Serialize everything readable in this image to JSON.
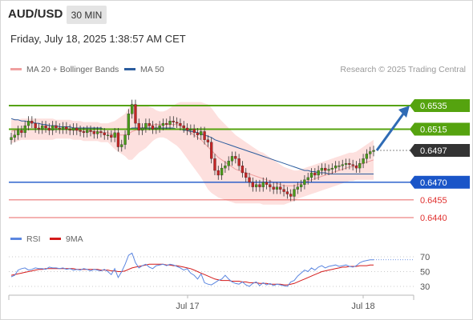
{
  "header": {
    "symbol": "AUD/USD",
    "timeframe": "30 MIN",
    "timestamp": "Friday, July 18, 2025 1:38:57 AM CET"
  },
  "legend": {
    "ma20_label": "MA 20 + Bollinger Bands",
    "ma50_label": "MA 50",
    "credit": "Research © 2025 Trading Central",
    "rsi_label": "RSI",
    "ma9_label": "9MA"
  },
  "colors": {
    "green_level": "#55a30f",
    "blue_level": "#1a55c8",
    "red_level": "#e0312f",
    "price_badge": "#333333",
    "arrow": "#2f6bb5",
    "candle_up": "#4a9a1a",
    "candle_down": "#c42525",
    "bollinger_fill": "#fde0de",
    "ma20": "#f0a0a0",
    "ma50": "#2b5c9e",
    "rsi": "#5b86e0",
    "rsi_ma": "#d41a1a"
  },
  "chart_data": [
    {
      "type": "candlestick",
      "title": "AUD/USD 30 MIN",
      "price_levels": [
        {
          "value": 0.6535,
          "label": "0.6535",
          "kind": "resistance"
        },
        {
          "value": 0.6515,
          "label": "0.6515",
          "kind": "resistance"
        },
        {
          "value": 0.6497,
          "label": "0.6497",
          "kind": "last_price"
        },
        {
          "value": 0.647,
          "label": "0.6470",
          "kind": "pivot"
        },
        {
          "value": 0.6455,
          "label": "0.6455",
          "kind": "support"
        },
        {
          "value": 0.644,
          "label": "0.6440",
          "kind": "support"
        }
      ],
      "x_ticks": [
        "Jul 17",
        "Jul 18"
      ],
      "ylim": [
        0.643,
        0.6545
      ],
      "closes": [
        0.6508,
        0.651,
        0.6514,
        0.6512,
        0.6518,
        0.6522,
        0.652,
        0.6516,
        0.6515,
        0.6518,
        0.6516,
        0.6514,
        0.6518,
        0.6516,
        0.6515,
        0.6517,
        0.6515,
        0.6514,
        0.6516,
        0.6514,
        0.6513,
        0.6512,
        0.6514,
        0.6513,
        0.6511,
        0.6513,
        0.6512,
        0.651,
        0.651,
        0.6508,
        0.6512,
        0.65,
        0.6502,
        0.651,
        0.6528,
        0.6536,
        0.652,
        0.6514,
        0.6516,
        0.652,
        0.6518,
        0.6515,
        0.6516,
        0.6518,
        0.652,
        0.6519,
        0.6522,
        0.6521,
        0.652,
        0.6518,
        0.6516,
        0.6514,
        0.6515,
        0.6512,
        0.651,
        0.6513,
        0.6506,
        0.6504,
        0.649,
        0.648,
        0.6476,
        0.6482,
        0.6484,
        0.6488,
        0.6492,
        0.649,
        0.6484,
        0.6478,
        0.6474,
        0.647,
        0.6466,
        0.6468,
        0.6466,
        0.647,
        0.6468,
        0.6466,
        0.6464,
        0.6466,
        0.6464,
        0.6462,
        0.646,
        0.6458,
        0.6464,
        0.6466,
        0.6468,
        0.6472,
        0.6474,
        0.6478,
        0.6476,
        0.648,
        0.6482,
        0.648,
        0.6481,
        0.6482,
        0.6484,
        0.6484,
        0.6485,
        0.6486,
        0.6485,
        0.6484,
        0.6482,
        0.6486,
        0.649,
        0.6494,
        0.6496,
        0.6497
      ],
      "ma20": [
        0.6513,
        0.6514,
        0.6514,
        0.6515,
        0.6515,
        0.6515,
        0.6515,
        0.6515,
        0.6515,
        0.6515,
        0.6515,
        0.6515,
        0.6515,
        0.6515,
        0.6515,
        0.6515,
        0.6515,
        0.6515,
        0.6514,
        0.6514,
        0.6514,
        0.6513,
        0.6513,
        0.6513,
        0.6513,
        0.6513,
        0.6512,
        0.6512,
        0.6512,
        0.6511,
        0.651,
        0.651,
        0.651,
        0.651,
        0.6511,
        0.6513,
        0.6514,
        0.6515,
        0.6516,
        0.6517,
        0.6518,
        0.6519,
        0.6519,
        0.6519,
        0.6519,
        0.6519,
        0.6519,
        0.6519,
        0.6519,
        0.6518,
        0.6516,
        0.6514,
        0.6512,
        0.651,
        0.6508,
        0.6506,
        0.6503,
        0.65,
        0.6497,
        0.6494,
        0.6491,
        0.6489,
        0.6487,
        0.6485,
        0.6483,
        0.6481,
        0.648,
        0.6479,
        0.6478,
        0.6477,
        0.6476,
        0.6475,
        0.6474,
        0.6473,
        0.6472,
        0.6471,
        0.647,
        0.6469,
        0.6468,
        0.6467,
        0.6467,
        0.6467,
        0.6467,
        0.6468,
        0.6469,
        0.647,
        0.6471,
        0.6472,
        0.6473,
        0.6474,
        0.6475,
        0.6476,
        0.6477,
        0.6478,
        0.6479,
        0.648,
        0.6481,
        0.6482,
        0.6483,
        0.6483,
        0.6484,
        0.6485,
        0.6486,
        0.6487,
        0.6488,
        0.6489
      ],
      "ma50": [
        0.6524,
        0.6523,
        0.6523,
        0.6522,
        0.6522,
        0.6521,
        0.6521,
        0.652,
        0.652,
        0.6519,
        0.6519,
        0.6518,
        0.6518,
        0.6518,
        0.6517,
        0.6517,
        0.6517,
        0.6517,
        0.6516,
        0.6516,
        0.6516,
        0.6516,
        0.6516,
        0.6516,
        0.6516,
        0.6516,
        0.6516,
        0.6515,
        0.6515,
        0.6515,
        0.6515,
        0.6515,
        0.6515,
        0.6515,
        0.6515,
        0.6516,
        0.6516,
        0.6516,
        0.6516,
        0.6516,
        0.6516,
        0.6516,
        0.6516,
        0.6516,
        0.6516,
        0.6516,
        0.6516,
        0.6516,
        0.6515,
        0.6515,
        0.6514,
        0.6514,
        0.6513,
        0.6513,
        0.6512,
        0.6511,
        0.651,
        0.6509,
        0.6508,
        0.6506,
        0.6505,
        0.6504,
        0.6503,
        0.6502,
        0.6501,
        0.65,
        0.6499,
        0.6498,
        0.6497,
        0.6496,
        0.6495,
        0.6494,
        0.6493,
        0.6492,
        0.6491,
        0.649,
        0.6489,
        0.6488,
        0.6487,
        0.6486,
        0.6485,
        0.6484,
        0.6483,
        0.6482,
        0.6481,
        0.648,
        0.648,
        0.6479,
        0.6479,
        0.6478,
        0.6478,
        0.6478,
        0.6477,
        0.6477,
        0.6477,
        0.6477,
        0.6477,
        0.6477,
        0.6477,
        0.6477,
        0.6477,
        0.6477,
        0.6477,
        0.6477,
        0.6477,
        0.6477
      ],
      "bb_width": [
        0.001,
        0.001,
        0.0009,
        0.0009,
        0.0009,
        0.0009,
        0.0009,
        0.0009,
        0.0009,
        0.0009,
        0.0009,
        0.0009,
        0.0009,
        0.0008,
        0.0008,
        0.0008,
        0.0008,
        0.0008,
        0.0008,
        0.0008,
        0.0008,
        0.0008,
        0.0008,
        0.0008,
        0.0008,
        0.0008,
        0.0008,
        0.0008,
        0.0008,
        0.001,
        0.0012,
        0.0014,
        0.0016,
        0.0018,
        0.0022,
        0.0024,
        0.0022,
        0.002,
        0.0019,
        0.0018,
        0.0016,
        0.0014,
        0.0012,
        0.0011,
        0.0011,
        0.0012,
        0.0014,
        0.0016,
        0.0018,
        0.002,
        0.0022,
        0.0024,
        0.0026,
        0.0028,
        0.003,
        0.0032,
        0.0034,
        0.0036,
        0.0036,
        0.0035,
        0.0034,
        0.0033,
        0.0032,
        0.0031,
        0.003,
        0.0029,
        0.0028,
        0.0027,
        0.0026,
        0.0025,
        0.0024,
        0.0023,
        0.0022,
        0.0022,
        0.0021,
        0.002,
        0.0019,
        0.0018,
        0.0017,
        0.0016,
        0.0015,
        0.0014,
        0.0013,
        0.0012,
        0.0012,
        0.0012,
        0.0012,
        0.0012,
        0.0012,
        0.0012,
        0.0012,
        0.0012,
        0.0012,
        0.0012,
        0.0012,
        0.0012,
        0.0012,
        0.0012,
        0.0012,
        0.0012,
        0.0012,
        0.0013,
        0.0014,
        0.0015,
        0.0016,
        0.0017
      ],
      "forecast": {
        "from": 0.6497,
        "to": 0.6535
      }
    },
    {
      "type": "line",
      "title": "RSI",
      "y_ticks": [
        70,
        50,
        30
      ],
      "ylim": [
        20,
        80
      ],
      "series": [
        {
          "name": "RSI",
          "values": [
            43,
            45,
            52,
            54,
            55,
            52,
            53,
            55,
            54,
            54,
            53,
            56,
            55,
            55,
            54,
            55,
            53,
            54,
            52,
            53,
            52,
            54,
            53,
            51,
            53,
            52,
            51,
            53,
            50,
            46,
            54,
            42,
            50,
            60,
            72,
            75,
            62,
            55,
            58,
            60,
            56,
            54,
            58,
            59,
            60,
            58,
            60,
            59,
            57,
            55,
            52,
            54,
            48,
            45,
            40,
            47,
            35,
            33,
            32,
            35,
            38,
            40,
            45,
            40,
            36,
            34,
            33,
            36,
            32,
            30,
            34,
            36,
            31,
            35,
            32,
            34,
            31,
            33,
            32,
            31,
            30,
            36,
            38,
            44,
            48,
            52,
            50,
            55,
            52,
            56,
            58,
            55,
            57,
            58,
            59,
            57,
            58,
            59,
            57,
            56,
            58,
            62,
            64,
            65,
            66,
            66
          ]
        },
        {
          "name": "9MA",
          "values": [
            45,
            46,
            47,
            48,
            49,
            50,
            51,
            52,
            53,
            53,
            54,
            54,
            54,
            54,
            54,
            54,
            54,
            54,
            54,
            53,
            53,
            53,
            53,
            53,
            53,
            53,
            52,
            52,
            52,
            51,
            51,
            50,
            50,
            51,
            53,
            55,
            56,
            57,
            58,
            59,
            60,
            60,
            60,
            60,
            60,
            59,
            59,
            58,
            58,
            57,
            56,
            55,
            54,
            52,
            50,
            48,
            46,
            44,
            42,
            40,
            39,
            38,
            38,
            38,
            37,
            37,
            37,
            36,
            36,
            35,
            35,
            35,
            34,
            34,
            34,
            33,
            33,
            33,
            33,
            32,
            32,
            33,
            34,
            36,
            38,
            40,
            42,
            44,
            46,
            48,
            50,
            51,
            52,
            53,
            54,
            55,
            56,
            56,
            57,
            57,
            57,
            58,
            58,
            58,
            59,
            59
          ]
        }
      ]
    }
  ]
}
